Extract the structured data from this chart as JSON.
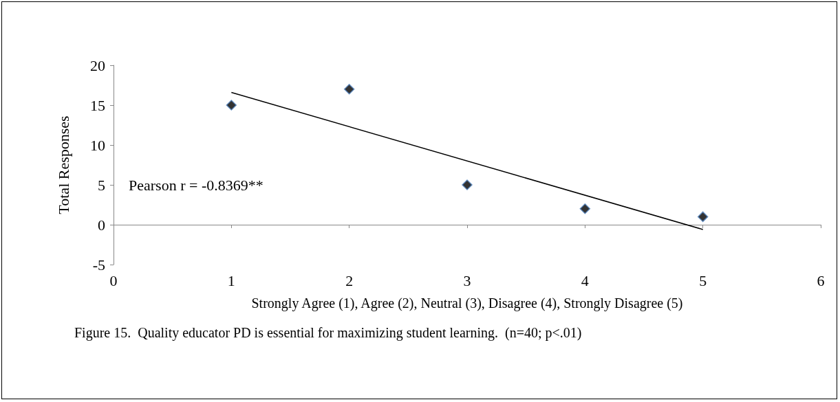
{
  "chart_data": {
    "type": "scatter",
    "xlabel": "Strongly Agree (1), Agree (2), Neutral (3), Disagree (4), Strongly Disagree (5)",
    "ylabel": "Total Responses",
    "annotations": [
      "Pearson r = -0.8369**",
      "Figure 15.  Quality educator PD is essential for maximizing student learning.  (n=40; p<.01)"
    ],
    "xlim": [
      0,
      6
    ],
    "xticks": [
      0,
      1,
      2,
      3,
      4,
      5,
      6
    ],
    "ylim": [
      -5,
      20
    ],
    "yticks": [
      -5,
      0,
      5,
      10,
      15,
      20
    ],
    "marker": "diamond",
    "series": [
      {
        "color": "#000000",
        "x": [
          1,
          2,
          3,
          4,
          5
        ],
        "values": [
          15,
          17,
          5,
          2,
          1
        ]
      },
      {
        "type": "line",
        "color": "#000000",
        "marker": "none",
        "x": [
          1,
          5
        ],
        "values": [
          16.6,
          -0.6
        ]
      }
    ]
  }
}
